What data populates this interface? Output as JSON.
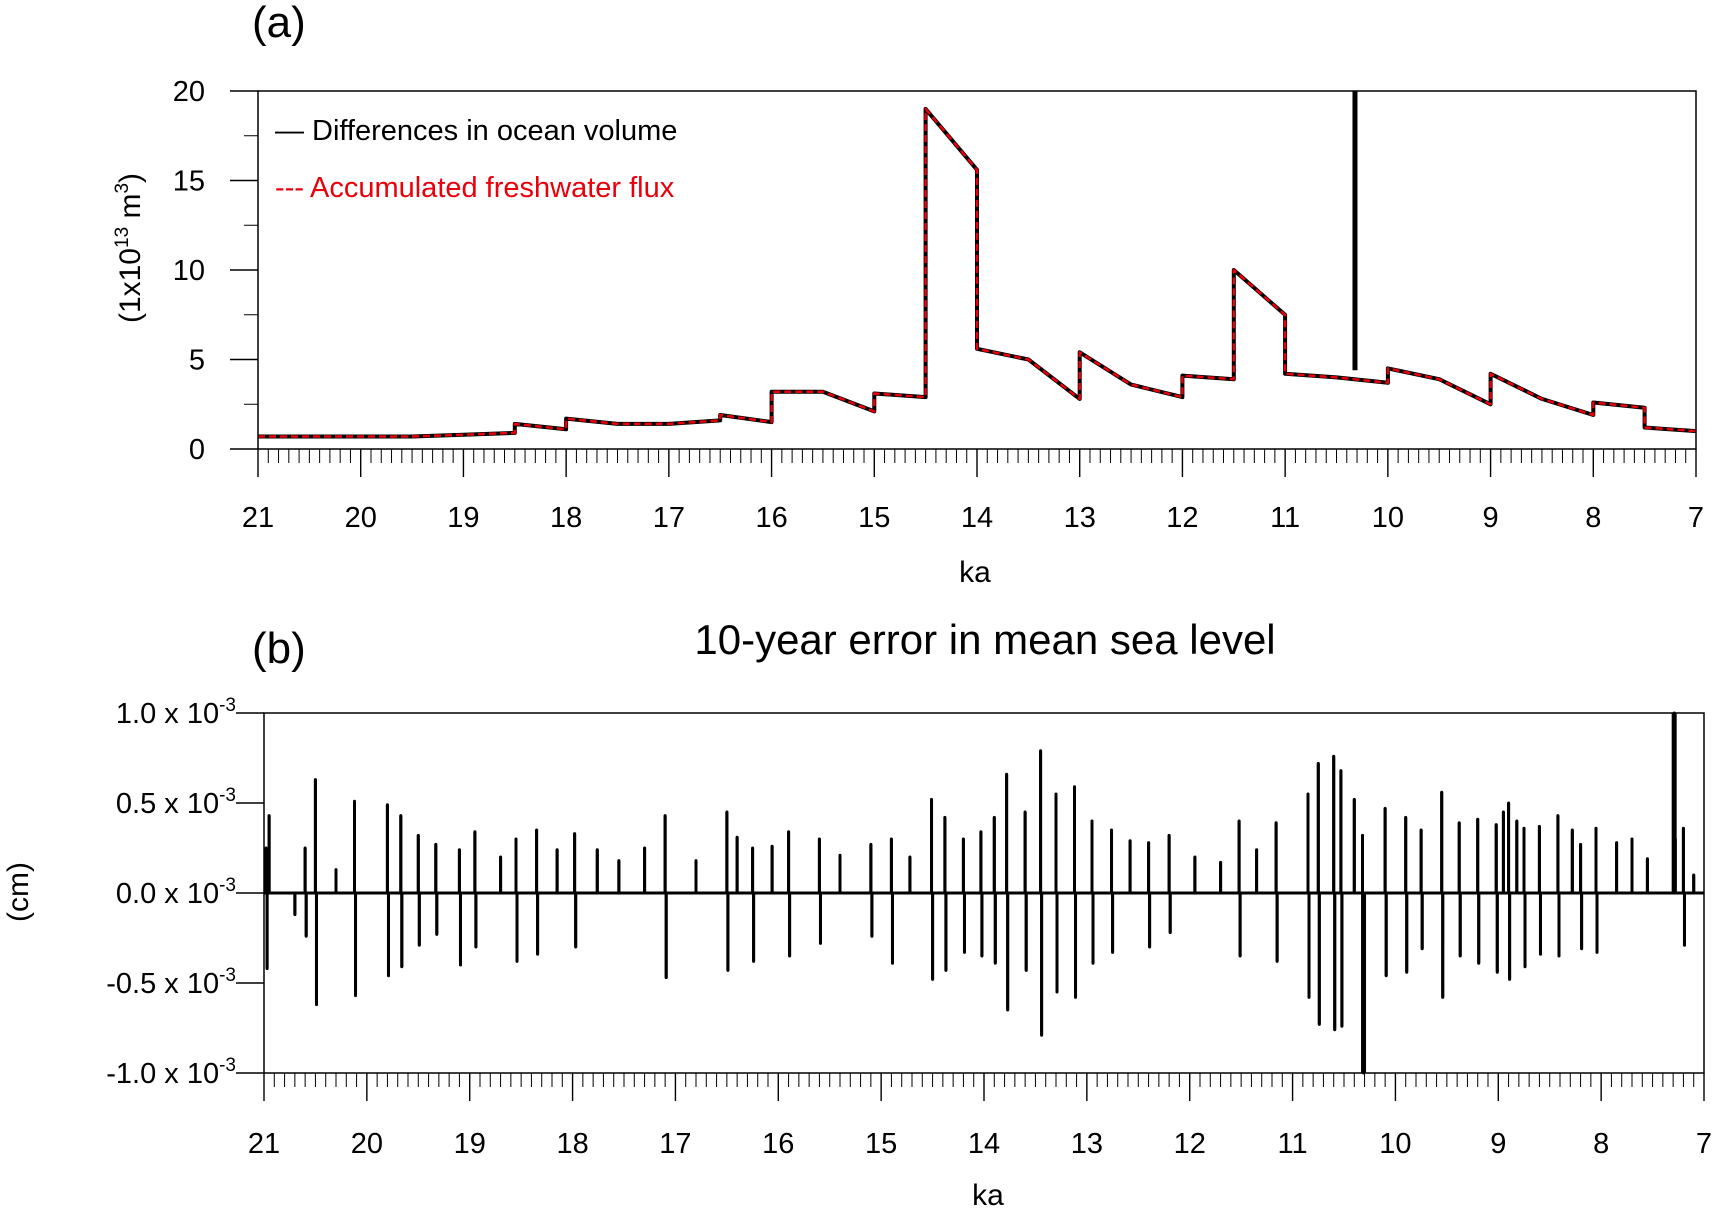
{
  "chart_data": [
    {
      "panel_label": "(a)",
      "type": "line",
      "title": "",
      "xlabel": "ka",
      "ylabel": "(1x10",
      "ylabel_exponent": "13",
      "ylabel_unit": " m",
      "ylabel_unit_exponent": "3",
      "ylabel_close": ")",
      "xlim": [
        21,
        7
      ],
      "ylim": [
        0,
        20
      ],
      "x_ticks": [
        21,
        20,
        19,
        18,
        17,
        16,
        15,
        14,
        13,
        12,
        11,
        10,
        9,
        8,
        7
      ],
      "x_tick_labels": [
        "21",
        "20",
        "19",
        "18",
        "17",
        "16",
        "15",
        "14",
        "13",
        "12",
        "11",
        "10",
        "9",
        "8",
        "7"
      ],
      "y_ticks": [
        0,
        5,
        10,
        15,
        20
      ],
      "y_tick_labels": [
        "0",
        "5",
        "10",
        "15",
        "20"
      ],
      "grid": false,
      "legend_position": "top-left",
      "legend": [
        {
          "marker": "—",
          "label": "Differences in ocean volume",
          "color": "#000000"
        },
        {
          "marker": "---",
          "label": "Accumulated freshwater flux",
          "color": "#e8000b"
        }
      ],
      "series": [
        {
          "name": "Differences in ocean volume",
          "color": "#000000",
          "style": "solid",
          "x": [
            21.0,
            20.5,
            20.0,
            19.5,
            19.0,
            18.5,
            18.5,
            18.0,
            18.0,
            17.5,
            17.0,
            16.5,
            16.5,
            16.0,
            16.0,
            15.5,
            15.0,
            15.0,
            14.5,
            14.5,
            14.0,
            14.0,
            13.5,
            13.0,
            13.0,
            12.5,
            12.0,
            12.0,
            11.5,
            11.5,
            11.0,
            11.0,
            10.5,
            10.0,
            10.0,
            9.5,
            9.0,
            9.0,
            8.5,
            8.0,
            8.0,
            7.5,
            7.5,
            7.0
          ],
          "y": [
            0.7,
            0.7,
            0.7,
            0.7,
            0.8,
            0.9,
            1.4,
            1.1,
            1.7,
            1.4,
            1.4,
            1.6,
            1.9,
            1.5,
            3.2,
            3.2,
            2.1,
            3.1,
            2.9,
            19.0,
            15.6,
            5.6,
            5.0,
            2.8,
            5.4,
            3.6,
            2.9,
            4.1,
            3.9,
            10.0,
            7.5,
            4.2,
            4.0,
            3.7,
            4.5,
            3.9,
            2.5,
            4.2,
            2.8,
            1.9,
            2.6,
            2.3,
            1.2,
            1.0
          ]
        },
        {
          "name": "Accumulated freshwater flux",
          "color": "#e8000b",
          "style": "dashed",
          "x": [
            21.0,
            20.5,
            20.0,
            19.5,
            19.0,
            18.5,
            18.5,
            18.0,
            18.0,
            17.5,
            17.0,
            16.5,
            16.5,
            16.0,
            16.0,
            15.5,
            15.0,
            15.0,
            14.5,
            14.5,
            14.0,
            14.0,
            13.5,
            13.0,
            13.0,
            12.5,
            12.0,
            12.0,
            11.5,
            11.5,
            11.0,
            11.0,
            10.5,
            10.0,
            10.0,
            9.5,
            9.0,
            9.0,
            8.5,
            8.0,
            8.0,
            7.5,
            7.5,
            7.0
          ],
          "y": [
            0.7,
            0.7,
            0.7,
            0.7,
            0.8,
            0.9,
            1.4,
            1.1,
            1.7,
            1.4,
            1.4,
            1.6,
            1.9,
            1.5,
            3.2,
            3.2,
            2.1,
            3.1,
            2.9,
            19.0,
            15.6,
            5.6,
            5.0,
            2.8,
            5.4,
            3.6,
            2.9,
            4.1,
            3.9,
            10.0,
            7.5,
            4.2,
            4.0,
            3.7,
            4.5,
            3.9,
            2.5,
            4.2,
            2.8,
            1.9,
            2.6,
            2.3,
            1.2,
            1.0
          ]
        }
      ],
      "annotations": [
        {
          "kind": "spike",
          "x": 10.32,
          "y_from": 4.4,
          "y_to": 20.0
        }
      ]
    },
    {
      "panel_label": "(b)",
      "type": "line",
      "title": "10-year error in mean sea level",
      "xlabel": "ka",
      "ylabel": "(cm)",
      "xlim": [
        21,
        7
      ],
      "ylim": [
        -1.0,
        1.0
      ],
      "y_unit_factor": "x 10",
      "y_unit_exponent": "-3",
      "x_ticks": [
        21,
        20,
        19,
        18,
        17,
        16,
        15,
        14,
        13,
        12,
        11,
        10,
        9,
        8,
        7
      ],
      "x_tick_labels": [
        "21",
        "20",
        "19",
        "18",
        "17",
        "16",
        "15",
        "14",
        "13",
        "12",
        "11",
        "10",
        "9",
        "8",
        "7"
      ],
      "y_ticks": [
        -1.0,
        -0.5,
        0.0,
        0.5,
        1.0
      ],
      "y_tick_labels": [
        "-1.0",
        "-0.5",
        "0.0",
        "0.5",
        "1.0"
      ],
      "grid": false,
      "series": [
        {
          "color": "#000000",
          "style": "solid",
          "spikes": [
            {
              "x": 20.98,
              "y": 0.25
            },
            {
              "x": 20.97,
              "y": -0.42
            },
            {
              "x": 20.95,
              "y": 0.43
            },
            {
              "x": 20.7,
              "y": -0.12
            },
            {
              "x": 20.6,
              "y": 0.25
            },
            {
              "x": 20.59,
              "y": -0.24
            },
            {
              "x": 20.5,
              "y": 0.63
            },
            {
              "x": 20.49,
              "y": -0.62
            },
            {
              "x": 20.3,
              "y": 0.13
            },
            {
              "x": 20.12,
              "y": 0.51
            },
            {
              "x": 20.11,
              "y": -0.57
            },
            {
              "x": 19.8,
              "y": 0.49
            },
            {
              "x": 19.79,
              "y": -0.46
            },
            {
              "x": 19.67,
              "y": 0.43
            },
            {
              "x": 19.66,
              "y": -0.41
            },
            {
              "x": 19.5,
              "y": 0.32
            },
            {
              "x": 19.49,
              "y": -0.29
            },
            {
              "x": 19.33,
              "y": 0.27
            },
            {
              "x": 19.32,
              "y": -0.23
            },
            {
              "x": 19.1,
              "y": 0.24
            },
            {
              "x": 19.09,
              "y": -0.4
            },
            {
              "x": 18.95,
              "y": 0.34
            },
            {
              "x": 18.94,
              "y": -0.3
            },
            {
              "x": 18.7,
              "y": 0.2
            },
            {
              "x": 18.55,
              "y": 0.3
            },
            {
              "x": 18.54,
              "y": -0.38
            },
            {
              "x": 18.35,
              "y": 0.35
            },
            {
              "x": 18.34,
              "y": -0.34
            },
            {
              "x": 18.15,
              "y": 0.24
            },
            {
              "x": 17.98,
              "y": 0.33
            },
            {
              "x": 17.97,
              "y": -0.3
            },
            {
              "x": 17.76,
              "y": 0.24
            },
            {
              "x": 17.55,
              "y": 0.18
            },
            {
              "x": 17.3,
              "y": 0.25
            },
            {
              "x": 17.1,
              "y": 0.43
            },
            {
              "x": 17.09,
              "y": -0.47
            },
            {
              "x": 16.8,
              "y": 0.18
            },
            {
              "x": 16.5,
              "y": 0.45
            },
            {
              "x": 16.49,
              "y": -0.43
            },
            {
              "x": 16.4,
              "y": 0.31
            },
            {
              "x": 16.25,
              "y": 0.25
            },
            {
              "x": 16.24,
              "y": -0.38
            },
            {
              "x": 16.06,
              "y": 0.26
            },
            {
              "x": 15.9,
              "y": 0.34
            },
            {
              "x": 15.89,
              "y": -0.35
            },
            {
              "x": 15.6,
              "y": 0.3
            },
            {
              "x": 15.59,
              "y": -0.28
            },
            {
              "x": 15.4,
              "y": 0.21
            },
            {
              "x": 15.1,
              "y": 0.27
            },
            {
              "x": 15.09,
              "y": -0.24
            },
            {
              "x": 14.9,
              "y": 0.3
            },
            {
              "x": 14.89,
              "y": -0.39
            },
            {
              "x": 14.72,
              "y": 0.2
            },
            {
              "x": 14.51,
              "y": 0.52
            },
            {
              "x": 14.5,
              "y": -0.48
            },
            {
              "x": 14.38,
              "y": 0.42
            },
            {
              "x": 14.37,
              "y": -0.43
            },
            {
              "x": 14.2,
              "y": 0.3
            },
            {
              "x": 14.19,
              "y": -0.33
            },
            {
              "x": 14.03,
              "y": 0.34
            },
            {
              "x": 14.02,
              "y": -0.35
            },
            {
              "x": 13.9,
              "y": 0.42
            },
            {
              "x": 13.89,
              "y": -0.39
            },
            {
              "x": 13.78,
              "y": 0.66
            },
            {
              "x": 13.77,
              "y": -0.65
            },
            {
              "x": 13.6,
              "y": 0.45
            },
            {
              "x": 13.59,
              "y": -0.43
            },
            {
              "x": 13.45,
              "y": 0.79
            },
            {
              "x": 13.44,
              "y": -0.79
            },
            {
              "x": 13.3,
              "y": 0.55
            },
            {
              "x": 13.29,
              "y": -0.55
            },
            {
              "x": 13.12,
              "y": 0.59
            },
            {
              "x": 13.11,
              "y": -0.58
            },
            {
              "x": 12.95,
              "y": 0.4
            },
            {
              "x": 12.94,
              "y": -0.39
            },
            {
              "x": 12.76,
              "y": 0.35
            },
            {
              "x": 12.75,
              "y": -0.33
            },
            {
              "x": 12.58,
              "y": 0.29
            },
            {
              "x": 12.4,
              "y": 0.28
            },
            {
              "x": 12.39,
              "y": -0.3
            },
            {
              "x": 12.2,
              "y": 0.32
            },
            {
              "x": 12.19,
              "y": -0.22
            },
            {
              "x": 11.95,
              "y": 0.2
            },
            {
              "x": 11.7,
              "y": 0.17
            },
            {
              "x": 11.52,
              "y": 0.4
            },
            {
              "x": 11.51,
              "y": -0.35
            },
            {
              "x": 11.35,
              "y": 0.24
            },
            {
              "x": 11.16,
              "y": 0.39
            },
            {
              "x": 11.15,
              "y": -0.38
            },
            {
              "x": 10.85,
              "y": 0.55
            },
            {
              "x": 10.84,
              "y": -0.58
            },
            {
              "x": 10.75,
              "y": 0.72
            },
            {
              "x": 10.74,
              "y": -0.73
            },
            {
              "x": 10.6,
              "y": 0.76
            },
            {
              "x": 10.59,
              "y": -0.76
            },
            {
              "x": 10.53,
              "y": 0.68
            },
            {
              "x": 10.52,
              "y": -0.74
            },
            {
              "x": 10.4,
              "y": 0.52
            },
            {
              "x": 10.32,
              "y": 0.32
            },
            {
              "x": 10.31,
              "y": -1.0
            },
            {
              "x": 10.1,
              "y": 0.47
            },
            {
              "x": 10.09,
              "y": -0.46
            },
            {
              "x": 9.9,
              "y": 0.42
            },
            {
              "x": 9.89,
              "y": -0.44
            },
            {
              "x": 9.75,
              "y": 0.35
            },
            {
              "x": 9.74,
              "y": -0.31
            },
            {
              "x": 9.55,
              "y": 0.56
            },
            {
              "x": 9.54,
              "y": -0.58
            },
            {
              "x": 9.38,
              "y": 0.39
            },
            {
              "x": 9.37,
              "y": -0.35
            },
            {
              "x": 9.2,
              "y": 0.41
            },
            {
              "x": 9.19,
              "y": -0.39
            },
            {
              "x": 9.02,
              "y": 0.38
            },
            {
              "x": 9.01,
              "y": -0.44
            },
            {
              "x": 8.95,
              "y": 0.45
            },
            {
              "x": 8.9,
              "y": 0.5
            },
            {
              "x": 8.89,
              "y": -0.48
            },
            {
              "x": 8.82,
              "y": 0.4
            },
            {
              "x": 8.75,
              "y": 0.36
            },
            {
              "x": 8.74,
              "y": -0.41
            },
            {
              "x": 8.6,
              "y": 0.37
            },
            {
              "x": 8.59,
              "y": -0.34
            },
            {
              "x": 8.42,
              "y": 0.43
            },
            {
              "x": 8.41,
              "y": -0.35
            },
            {
              "x": 8.28,
              "y": 0.35
            },
            {
              "x": 8.2,
              "y": 0.27
            },
            {
              "x": 8.19,
              "y": -0.31
            },
            {
              "x": 8.05,
              "y": 0.36
            },
            {
              "x": 8.04,
              "y": -0.33
            },
            {
              "x": 7.85,
              "y": 0.28
            },
            {
              "x": 7.7,
              "y": 0.3
            },
            {
              "x": 7.55,
              "y": 0.19
            },
            {
              "x": 7.29,
              "y": 1.0
            },
            {
              "x": 7.28,
              "y": 0.3
            },
            {
              "x": 7.2,
              "y": 0.36
            },
            {
              "x": 7.19,
              "y": -0.29
            },
            {
              "x": 7.1,
              "y": 0.1
            }
          ]
        }
      ]
    }
  ]
}
